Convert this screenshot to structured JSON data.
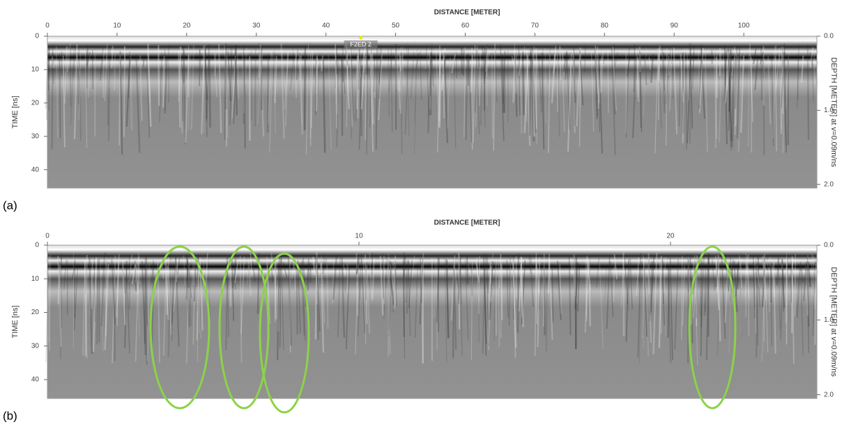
{
  "chart_data": [
    {
      "type": "radargram",
      "panel_label": "(a)",
      "x_label": "DISTANCE [METER]",
      "y_label": "TIME [ns]",
      "y2_label": "DEPTH [METER] at v=0.09m/ns",
      "xlim": [
        0,
        110.5
      ],
      "xticks": [
        0,
        10,
        20,
        30,
        40,
        50,
        60,
        70,
        80,
        90,
        100
      ],
      "ylim": [
        0,
        45.5
      ],
      "yticks": [
        0,
        10,
        20,
        30,
        40
      ],
      "y2lim": [
        0,
        2.05
      ],
      "y2ticks": [
        {
          "value": 0,
          "label": "0.0"
        },
        {
          "value": 1,
          "label": "1.0"
        },
        {
          "value": 2,
          "label": "2.0"
        }
      ],
      "annotations": [
        {
          "text": "F2ED 2",
          "x": 45
        }
      ]
    },
    {
      "type": "radargram",
      "panel_label": "(b)",
      "x_label": "DISTANCE [METER]",
      "y_label": "TIME [ns]",
      "y2_label": "DEPTH [METER] at v=0.09m/ns",
      "xlim": [
        0,
        24.7
      ],
      "xticks": [
        0,
        10,
        20
      ],
      "ylim": [
        0,
        45.6
      ],
      "yticks": [
        0,
        10,
        20,
        30,
        40
      ],
      "y2lim": [
        0,
        2.05
      ],
      "y2ticks": [
        {
          "value": 0,
          "label": "0.0"
        },
        {
          "value": 1,
          "label": "1.0"
        },
        {
          "value": 2,
          "label": "2.0"
        }
      ]
    }
  ]
}
